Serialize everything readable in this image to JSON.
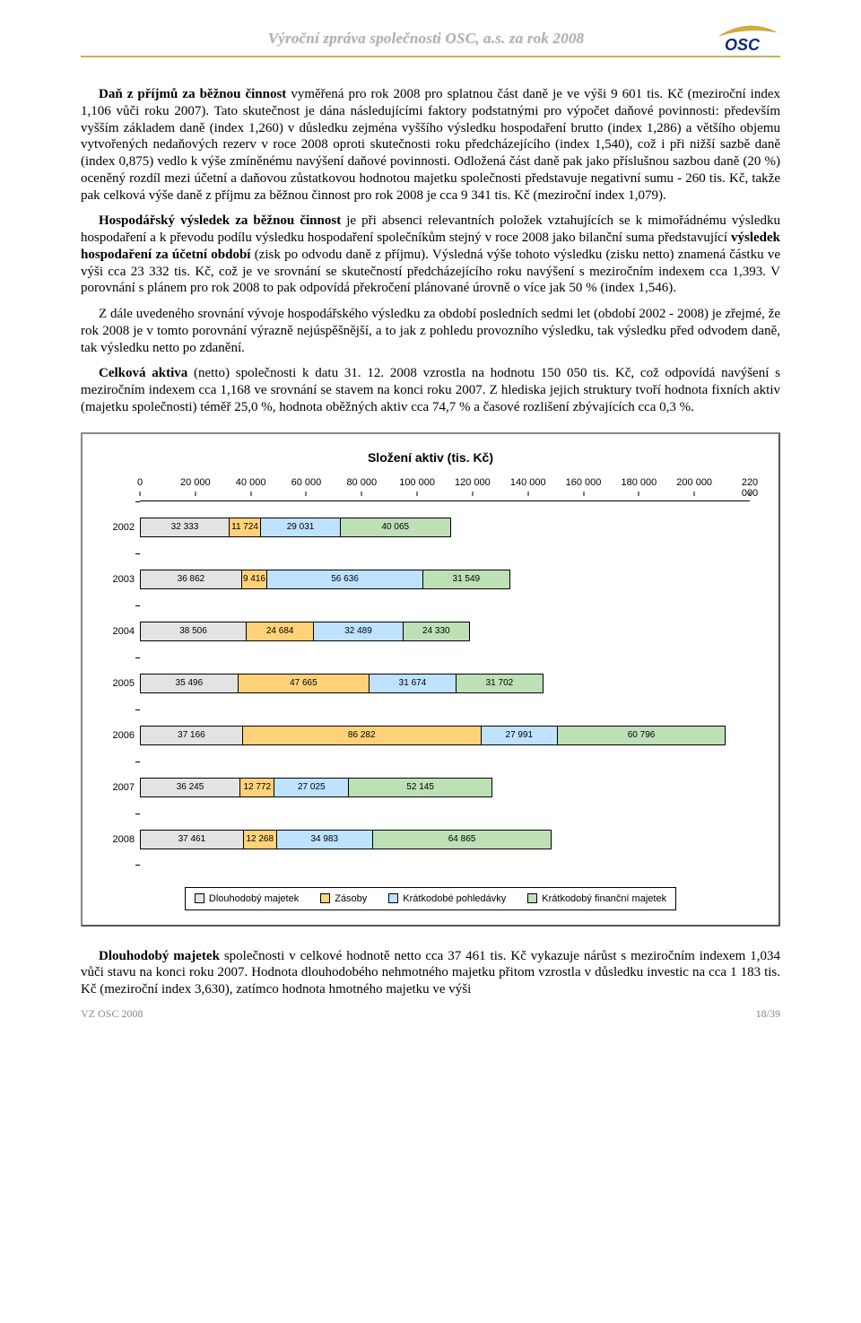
{
  "header": {
    "title": "Výroční zpráva společnosti OSC, a.s. za rok 2008",
    "logo_text": "OSC",
    "logo_colors": {
      "text": "#0a2a7a",
      "swoosh": "#d4af37"
    }
  },
  "paragraphs": {
    "p1a": "Daň z příjmů za běžnou činnost",
    "p1b": " vyměřená pro rok 2008 pro splatnou část daně je ve výši 9 601 tis. Kč (meziroční index 1,106 vůči roku 2007). Tato skutečnost je dána následujícími faktory podstatnými pro výpočet daňové povinnosti: především vyšším základem daně (index 1,260) v důsledku zejména vyššího výsledku hospodaření brutto (index 1,286) a většího objemu vytvořených nedaňových rezerv v roce 2008 oproti skutečnosti roku předcházejícího (index 1,540), což i při nižší sazbě daně (index 0,875) vedlo k výše zmíněnému navýšení daňové povinnosti. Odložená část daně pak jako příslušnou sazbou daně (20 %) oceněný rozdíl mezi účetní a daňovou zůstatkovou hodnotou majetku společnosti představuje negativní sumu - 260 tis. Kč, takže pak celková výše daně z příjmu za běžnou činnost pro rok 2008 je cca 9 341 tis. Kč (meziroční index 1,079).",
    "p2a": "Hospodářský výsledek za běžnou činnost",
    "p2b": " je při absenci relevantních položek vztahujících se k mimořádnému výsledku hospodaření a k převodu podílu výsledku hospodaření společníkům stejný v roce 2008 jako bilanční suma představující ",
    "p2c": "výsledek hospodaření za účetní období",
    "p2d": " (zisk po odvodu daně z příjmu). Výsledná výše tohoto výsledku (zisku netto) znamená částku ve výši cca 23 332 tis. Kč, což je ve srovnání se skutečností předcházejícího roku navýšení s meziročním indexem cca 1,393. V porovnání s plánem pro rok 2008 to pak odpovídá překročení plánované úrovně o více jak 50 % (index 1,546).",
    "p3": "Z dále uvedeného srovnání vývoje hospodářského výsledku za období posledních sedmi let (období 2002 - 2008) je zřejmé, že rok 2008 je v tomto porovnání výrazně nejúspěšnější, a to jak z pohledu provozního výsledku, tak výsledku před odvodem daně, tak výsledku netto po zdanění.",
    "p4a": "Celková aktiva",
    "p4b": " (netto) společnosti k datu 31. 12. 2008 vzrostla na hodnotu 150 050 tis. Kč, což odpovídá navýšení s meziročním indexem cca 1,168 ve srovnání se stavem na konci roku 2007. Z hlediska jejich struktury tvoří hodnota fixních aktiv (majetku společnosti) téměř 25,0 %, hodnota oběžných aktiv cca 74,7 % a časové rozlišení zbývajících cca 0,3 %.",
    "p5a": "Dlouhodobý majetek",
    "p5b": " společnosti v celkové hodnotě netto cca 37 461 tis. Kč vykazuje nárůst s meziročním indexem 1,034 vůči stavu na konci roku 2007. Hodnota dlouhodobého nehmotného majetku přitom vzrostla v důsledku investic na cca 1 183 tis. Kč (meziroční index 3,630), zatímco hodnota hmotného majetku ve výši"
  },
  "chart": {
    "title": "Složení aktiv (tis. Kč)",
    "x_ticks": [
      0,
      20000,
      40000,
      60000,
      80000,
      100000,
      120000,
      140000,
      160000,
      180000,
      200000,
      220000
    ],
    "x_tick_labels": [
      "0",
      "20 000",
      "40 000",
      "60 000",
      "80 000",
      "100 000",
      "120 000",
      "140 000",
      "160 000",
      "180 000",
      "200 000",
      "220 000"
    ],
    "x_max": 220000,
    "series": [
      {
        "name": "Dlouhodobý majetek",
        "color": "#e3e3e3"
      },
      {
        "name": "Zásoby",
        "color": "#ffd27a"
      },
      {
        "name": "Krátkodobé pohledávky",
        "color": "#bfe2ff"
      },
      {
        "name": "Krátkodobý finanční majetek",
        "color": "#bde0b6"
      }
    ],
    "rows": [
      {
        "label": "2002",
        "values": [
          32333,
          11724,
          29031,
          40065
        ]
      },
      {
        "label": "2003",
        "values": [
          36862,
          9416,
          56636,
          31549
        ]
      },
      {
        "label": "2004",
        "values": [
          38506,
          24684,
          32489,
          24330
        ]
      },
      {
        "label": "2005",
        "values": [
          35496,
          47665,
          31674,
          31702
        ]
      },
      {
        "label": "2006",
        "values": [
          37166,
          86282,
          27991,
          60796
        ]
      },
      {
        "label": "2007",
        "values": [
          36245,
          12772,
          27025,
          52145
        ]
      },
      {
        "label": "2008",
        "values": [
          37461,
          12268,
          34983,
          64865
        ]
      }
    ]
  },
  "footer": {
    "left": "VZ OSC 2008",
    "right": "18/39"
  }
}
